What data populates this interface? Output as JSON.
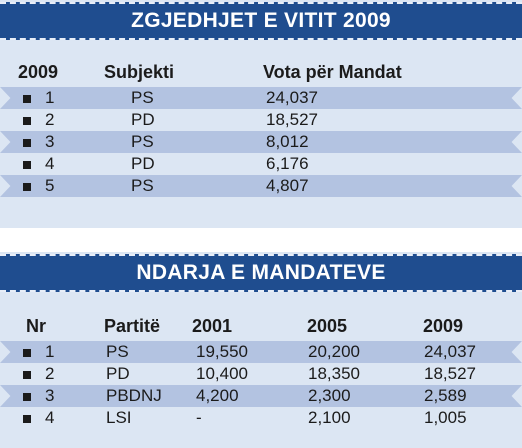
{
  "election": {
    "title": "ZGJEDHJET E VITIT 2009",
    "headers": {
      "year": "2009",
      "subject": "Subjekti",
      "votes": "Vota për Mandat"
    },
    "rows": [
      {
        "n": "1",
        "party": "PS",
        "votes": "24,037"
      },
      {
        "n": "2",
        "party": "PD",
        "votes": "18,527"
      },
      {
        "n": "3",
        "party": "PS",
        "votes": "8,012"
      },
      {
        "n": "4",
        "party": "PD",
        "votes": "6,176"
      },
      {
        "n": "5",
        "party": "PS",
        "votes": "4,807"
      }
    ]
  },
  "mandates": {
    "title": "NDARJA E MANDATEVE",
    "headers": {
      "nr": "Nr",
      "party": "Partitë",
      "y2001": "2001",
      "y2005": "2005",
      "y2009": "2009"
    },
    "rows": [
      {
        "n": "1",
        "party": "PS",
        "y2001": "19,550",
        "y2005": "20,200",
        "y2009": "24,037"
      },
      {
        "n": "2",
        "party": "PD",
        "y2001": "10,400",
        "y2005": "18,350",
        "y2009": "18,527"
      },
      {
        "n": "3",
        "party": "PBDNJ",
        "y2001": "4,200",
        "y2005": "2,300",
        "y2009": "2,589"
      },
      {
        "n": "4",
        "party": "LSI",
        "y2001": "-",
        "y2005": "2,100",
        "y2009": "1,005"
      }
    ]
  },
  "colors": {
    "banner": "#1f4d8f",
    "panel": "#dce6f3",
    "band": "#b3c3e1"
  }
}
